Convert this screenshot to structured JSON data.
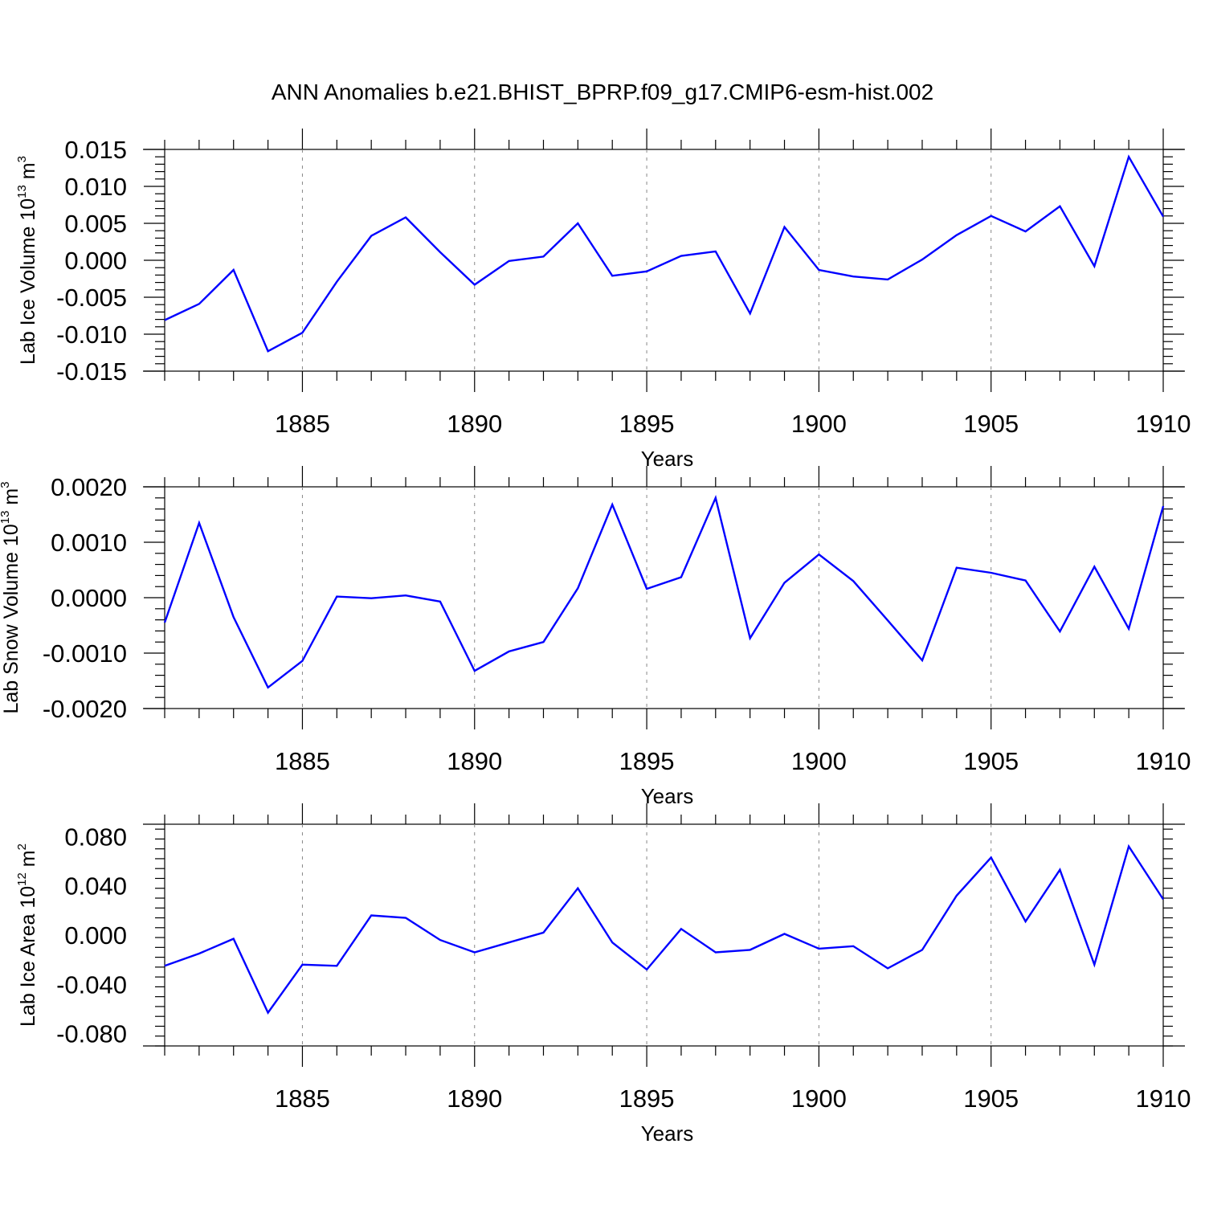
{
  "title": "ANN Anomalies b.e21.BHIST_BPRP.f09_g17.CMIP6-esm-hist.002",
  "colors": {
    "line": "#0000ff",
    "axes": "#000000",
    "grid": "#888888"
  },
  "chart_data": [
    {
      "type": "line",
      "ylabel": {
        "main": "Lab Ice Volume 10",
        "exp": "13",
        "unit": " m",
        "unit_exp": "3"
      },
      "xlabel": "Years",
      "xlim": [
        1881,
        1910
      ],
      "ylim": [
        -0.015,
        0.015
      ],
      "yticks": [
        -0.015,
        -0.01,
        -0.005,
        0.0,
        0.005,
        0.01,
        0.015
      ],
      "ytick_labels": [
        "-0.015",
        "-0.010",
        "-0.005",
        "0.000",
        "0.005",
        "0.010",
        "0.015"
      ],
      "xticks": [
        1885,
        1890,
        1895,
        1900,
        1905,
        1910
      ],
      "xtick_labels": [
        "1885",
        "1890",
        "1895",
        "1900",
        "1905",
        "1910"
      ],
      "x": [
        1881,
        1882,
        1883,
        1884,
        1885,
        1886,
        1887,
        1888,
        1889,
        1890,
        1891,
        1892,
        1893,
        1894,
        1895,
        1896,
        1897,
        1898,
        1899,
        1900,
        1901,
        1902,
        1903,
        1904,
        1905,
        1906,
        1907,
        1908,
        1909,
        1910
      ],
      "values": [
        -0.0081,
        -0.0059,
        -0.0013,
        -0.0123,
        -0.0098,
        -0.0029,
        0.0033,
        0.0058,
        0.0011,
        -0.0033,
        -0.0001,
        0.0005,
        0.005,
        -0.0021,
        -0.0015,
        0.0006,
        0.0012,
        -0.0072,
        0.0045,
        -0.0013,
        -0.0022,
        -0.0026,
        0.0001,
        0.0034,
        0.006,
        0.0039,
        0.0073,
        -0.0008,
        0.014,
        0.0059
      ]
    },
    {
      "type": "line",
      "ylabel": {
        "main": "Lab Snow Volume 10",
        "exp": "13",
        "unit": " m",
        "unit_exp": "3"
      },
      "xlabel": "Years",
      "xlim": [
        1881,
        1910
      ],
      "ylim": [
        -0.002,
        0.002
      ],
      "yticks": [
        -0.002,
        -0.001,
        0.0,
        0.001,
        0.002
      ],
      "ytick_labels": [
        "-0.0020",
        "-0.0010",
        "0.0000",
        "0.0010",
        "0.0020"
      ],
      "xticks": [
        1885,
        1890,
        1895,
        1900,
        1905,
        1910
      ],
      "xtick_labels": [
        "1885",
        "1890",
        "1895",
        "1900",
        "1905",
        "1910"
      ],
      "x": [
        1881,
        1882,
        1883,
        1884,
        1885,
        1886,
        1887,
        1888,
        1889,
        1890,
        1891,
        1892,
        1893,
        1894,
        1895,
        1896,
        1897,
        1898,
        1899,
        1900,
        1901,
        1902,
        1903,
        1904,
        1905,
        1906,
        1907,
        1908,
        1909,
        1910
      ],
      "values": [
        -0.00045,
        0.00135,
        -0.00035,
        -0.00162,
        -0.00114,
        2e-05,
        -1e-05,
        4e-05,
        -7e-05,
        -0.00132,
        -0.00097,
        -0.0008,
        0.00017,
        0.00168,
        0.00016,
        0.00037,
        0.0018,
        -0.00073,
        0.00027,
        0.00078,
        0.0003,
        -0.00041,
        -0.00113,
        0.00054,
        0.00045,
        0.00031,
        -0.00061,
        0.00056,
        -0.00056,
        0.00165
      ]
    },
    {
      "type": "line",
      "ylabel": {
        "main": "Lab Ice Area 10",
        "exp": "12",
        "unit": " m",
        "unit_exp": "2"
      },
      "xlabel": "Years",
      "xlim": [
        1881,
        1910
      ],
      "ylim": [
        -0.09,
        0.09
      ],
      "yticks": [
        -0.08,
        -0.04,
        0.0,
        0.04,
        0.08
      ],
      "ytick_labels": [
        "-0.080",
        "-0.040",
        "0.000",
        "0.040",
        "0.080"
      ],
      "xticks": [
        1885,
        1890,
        1895,
        1900,
        1905,
        1910
      ],
      "xtick_labels": [
        "1885",
        "1890",
        "1895",
        "1900",
        "1905",
        "1910"
      ],
      "x": [
        1881,
        1882,
        1883,
        1884,
        1885,
        1886,
        1887,
        1888,
        1889,
        1890,
        1891,
        1892,
        1893,
        1894,
        1895,
        1896,
        1897,
        1898,
        1899,
        1900,
        1901,
        1902,
        1903,
        1904,
        1905,
        1906,
        1907,
        1908,
        1909,
        1910
      ],
      "values": [
        -0.025,
        -0.015,
        -0.003,
        -0.063,
        -0.024,
        -0.025,
        0.016,
        0.014,
        -0.004,
        -0.014,
        -0.006,
        0.002,
        0.038,
        -0.006,
        -0.028,
        0.005,
        -0.014,
        -0.012,
        0.001,
        -0.011,
        -0.009,
        -0.027,
        -0.012,
        0.032,
        0.063,
        0.011,
        0.053,
        -0.024,
        0.072,
        0.029
      ]
    }
  ]
}
